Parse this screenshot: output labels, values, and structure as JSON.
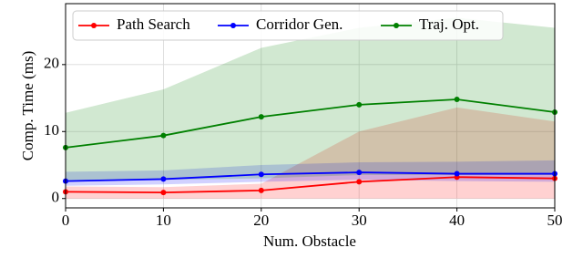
{
  "chart_data": {
    "type": "line",
    "x_label": "Num. Obstacle",
    "y_label": "Comp. Time (ms)",
    "x": [
      0,
      10,
      20,
      30,
      40,
      50
    ],
    "series": [
      {
        "name": "Path Search",
        "color": "#ff0000",
        "values": [
          1.0,
          0.9,
          1.2,
          2.5,
          3.2,
          3.0
        ],
        "lower": [
          0,
          0,
          0,
          0,
          0,
          0
        ],
        "upper": [
          1.8,
          1.7,
          2.2,
          10,
          13.6,
          11.5
        ]
      },
      {
        "name": "Corridor Gen.",
        "color": "#0000ff",
        "values": [
          2.6,
          2.9,
          3.6,
          3.9,
          3.7,
          3.7
        ],
        "lower": [
          1.9,
          2.1,
          2.5,
          2.8,
          2.6,
          2.5
        ],
        "upper": [
          4.0,
          4.2,
          5.0,
          5.4,
          5.5,
          5.7
        ]
      },
      {
        "name": "Traj. Opt.",
        "color": "#008000",
        "values": [
          7.6,
          9.4,
          12.2,
          14.0,
          14.8,
          12.9
        ],
        "lower": [
          2.5,
          2.8,
          3.0,
          3.5,
          3.5,
          3.5
        ],
        "upper": [
          12.8,
          16.3,
          22.5,
          25.5,
          27,
          25.5
        ]
      }
    ],
    "xlim": [
      0,
      50
    ],
    "xticks": [
      0,
      10,
      20,
      30,
      40,
      50
    ],
    "ylim": [
      -1.4,
      29.1
    ],
    "yticks": [
      0,
      10,
      20
    ],
    "grid": true,
    "legend": "top"
  }
}
